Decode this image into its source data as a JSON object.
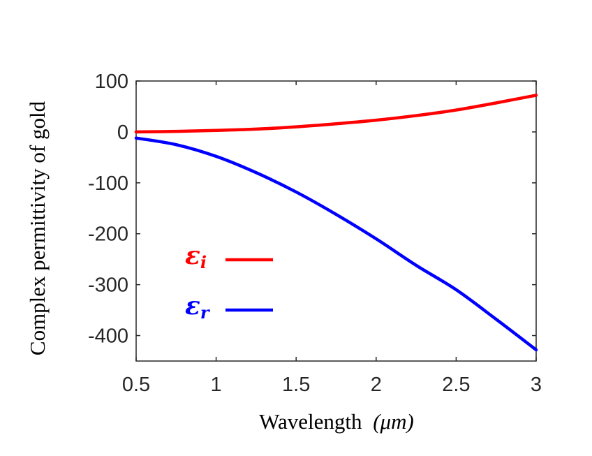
{
  "chart_data": {
    "type": "line",
    "xlabel": "Wavelength",
    "xlabel_unit": "(μm)",
    "ylabel": "Complex permittivity of gold",
    "xlim": [
      0.5,
      3
    ],
    "ylim": [
      -450,
      100
    ],
    "xticks": [
      0.5,
      1,
      1.5,
      2,
      2.5,
      3
    ],
    "xtick_labels": [
      "0.5",
      "1",
      "1.5",
      "2",
      "2.5",
      "3"
    ],
    "yticks": [
      100,
      0,
      -100,
      -200,
      -300,
      -400
    ],
    "ytick_labels": [
      "100",
      "0",
      "-100",
      "-200",
      "-300",
      "-400"
    ],
    "legend_position": "center-left",
    "series": [
      {
        "name": "ε_i",
        "symbol": "ε",
        "subscript": "i",
        "color": "#ff0000",
        "x": [
          0.5,
          0.75,
          1.0,
          1.25,
          1.5,
          1.75,
          2.0,
          2.25,
          2.5,
          2.75,
          3.0
        ],
        "y": [
          0.0,
          1.0,
          3.0,
          5.5,
          10.0,
          16.0,
          23.0,
          32.0,
          43.0,
          57.0,
          72.0
        ]
      },
      {
        "name": "ε_r",
        "symbol": "ε",
        "subscript": "r",
        "color": "#0000ff",
        "x": [
          0.5,
          0.75,
          1.0,
          1.25,
          1.5,
          1.75,
          2.0,
          2.25,
          2.5,
          2.75,
          3.0
        ],
        "y": [
          -12.0,
          -25.0,
          -48.0,
          -80.0,
          -118.0,
          -162.0,
          -210.0,
          -262.0,
          -310.0,
          -368.0,
          -428.0
        ]
      }
    ]
  }
}
